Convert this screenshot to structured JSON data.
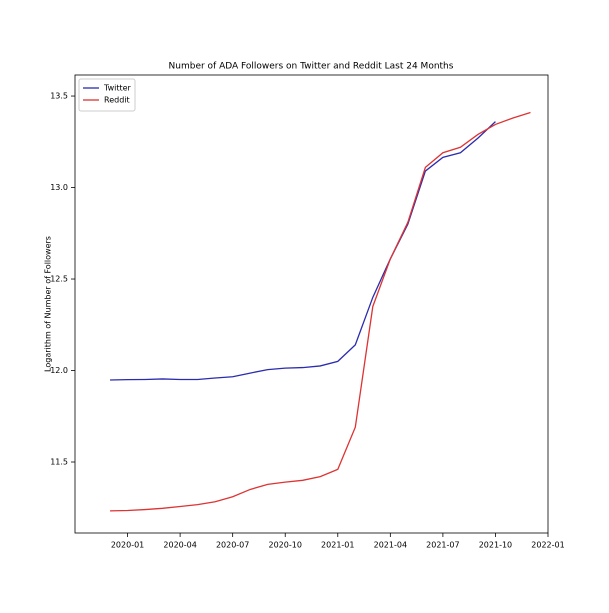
{
  "chart_data": {
    "type": "line",
    "title": "Number of ADA Followers on Twitter and Reddit Last 24 Months",
    "y_label": "Logarithm of Number of Followers",
    "x": [
      "2019-12",
      "2020-01",
      "2020-02",
      "2020-03",
      "2020-04",
      "2020-05",
      "2020-06",
      "2020-07",
      "2020-08",
      "2020-09",
      "2020-10",
      "2020-11",
      "2020-12",
      "2021-01",
      "2021-02",
      "2021-03",
      "2021-04",
      "2021-05",
      "2021-06",
      "2021-07",
      "2021-08",
      "2021-09",
      "2021-10",
      "2021-11",
      "2021-12"
    ],
    "series": [
      {
        "name": "Twitter",
        "color": "#2b2bb0",
        "values": [
          11.948,
          11.95,
          11.951,
          11.954,
          11.951,
          11.951,
          11.959,
          11.966,
          11.986,
          12.005,
          12.013,
          12.016,
          12.025,
          12.05,
          12.14,
          12.4,
          12.61,
          12.8,
          13.09,
          13.165,
          13.19,
          13.27,
          13.36,
          null,
          null
        ]
      },
      {
        "name": "Reddit",
        "color": "#dd3333",
        "values": [
          11.233,
          11.235,
          11.24,
          11.247,
          11.257,
          11.267,
          11.283,
          11.31,
          11.35,
          11.378,
          11.39,
          11.4,
          11.42,
          11.46,
          11.69,
          12.35,
          12.61,
          12.81,
          13.11,
          13.19,
          13.22,
          13.29,
          13.345,
          13.38,
          13.41
        ]
      }
    ],
    "xlim": [
      "2019-10",
      "2022-01"
    ],
    "xticks": [
      "2020-01",
      "2020-04",
      "2020-07",
      "2020-10",
      "2021-01",
      "2021-04",
      "2021-07",
      "2021-10",
      "2022-01"
    ],
    "ylim": [
      11.112,
      13.615
    ],
    "yticks": [
      11.5,
      {
        "value": 12,
        "label": "12.0"
      },
      12.5,
      {
        "value": 13,
        "label": "13.0"
      },
      13.5
    ],
    "legend": "upper left"
  }
}
